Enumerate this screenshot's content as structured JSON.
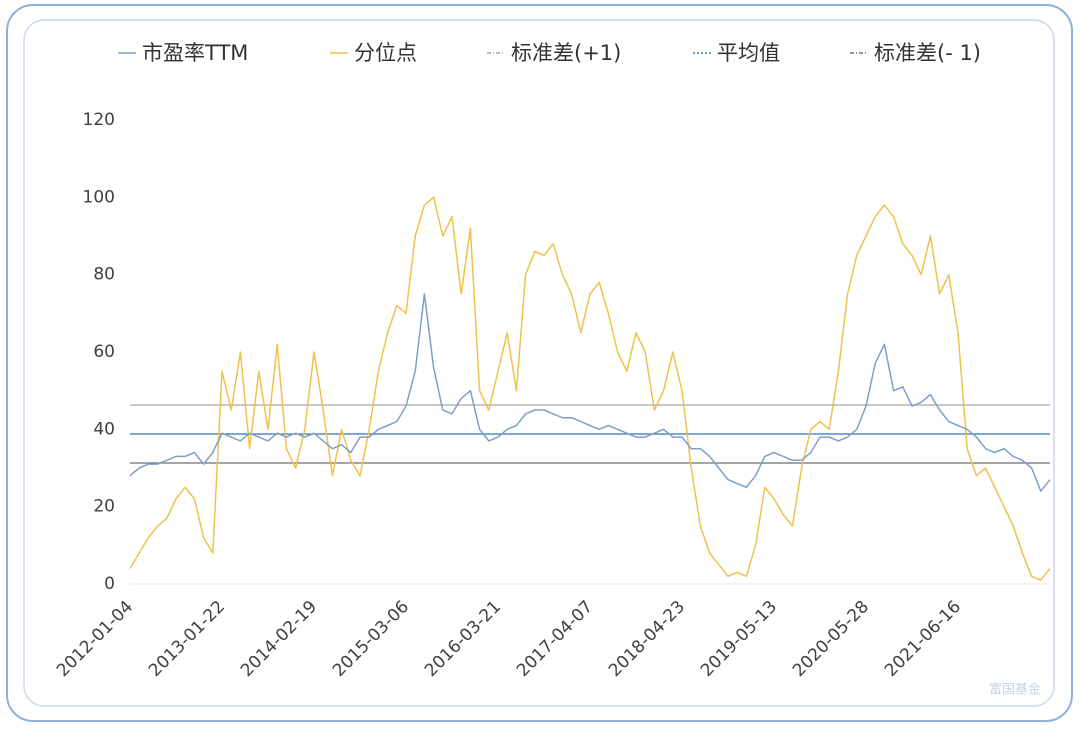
{
  "chart_data": {
    "type": "line",
    "watermark": "富国基金",
    "categories": [
      "2012-01-04",
      null,
      null,
      null,
      null,
      null,
      null,
      null,
      null,
      null,
      "2013-01-22",
      null,
      null,
      null,
      null,
      null,
      null,
      null,
      null,
      null,
      "2014-02-19",
      null,
      null,
      null,
      null,
      null,
      null,
      null,
      null,
      null,
      "2015-03-06",
      null,
      null,
      null,
      null,
      null,
      null,
      null,
      null,
      null,
      "2016-03-21",
      null,
      null,
      null,
      null,
      null,
      null,
      null,
      null,
      null,
      "2017-04-07",
      null,
      null,
      null,
      null,
      null,
      null,
      null,
      null,
      null,
      "2018-04-23",
      null,
      null,
      null,
      null,
      null,
      null,
      null,
      null,
      null,
      "2019-05-13",
      null,
      null,
      null,
      null,
      null,
      null,
      null,
      null,
      null,
      "2020-05-28",
      null,
      null,
      null,
      null,
      null,
      null,
      null,
      null,
      null,
      "2021-06-16",
      null,
      null,
      null,
      null,
      null,
      null,
      null,
      null,
      null,
      null
    ],
    "series": [
      {
        "name": "市盈率TTM",
        "color": "#7f9fc8",
        "values": [
          28,
          30,
          31,
          31,
          32,
          33,
          33,
          34,
          31,
          34,
          39,
          38,
          37,
          39,
          38,
          37,
          39,
          38,
          39,
          38,
          39,
          37,
          35,
          36,
          34,
          38,
          38,
          40,
          41,
          42,
          46,
          55,
          75,
          56,
          45,
          44,
          48,
          50,
          40,
          37,
          38,
          40,
          41,
          44,
          45,
          45,
          44,
          43,
          43,
          42,
          41,
          40,
          41,
          40,
          39,
          38,
          38,
          39,
          40,
          38,
          38,
          35,
          35,
          33,
          30,
          27,
          26,
          25,
          28,
          33,
          34,
          33,
          32,
          32,
          34,
          38,
          38,
          37,
          38,
          40,
          46,
          57,
          62,
          50,
          51,
          46,
          47,
          49,
          45,
          42,
          41,
          40,
          38,
          35,
          34,
          35,
          33,
          32,
          30,
          24,
          27
        ]
      },
      {
        "name": "分位点",
        "color": "#f0c14b",
        "values": [
          4,
          8,
          12,
          15,
          17,
          22,
          25,
          22,
          12,
          8,
          55,
          45,
          60,
          35,
          55,
          40,
          62,
          35,
          30,
          40,
          60,
          45,
          28,
          40,
          32,
          28,
          40,
          55,
          65,
          72,
          70,
          90,
          98,
          100,
          90,
          95,
          75,
          92,
          50,
          45,
          55,
          65,
          50,
          80,
          86,
          85,
          88,
          80,
          75,
          65,
          75,
          78,
          70,
          60,
          55,
          65,
          60,
          45,
          50,
          60,
          50,
          30,
          15,
          8,
          5,
          2,
          3,
          2,
          10,
          25,
          22,
          18,
          15,
          30,
          40,
          42,
          40,
          55,
          75,
          85,
          90,
          95,
          98,
          95,
          88,
          85,
          80,
          90,
          75,
          80,
          65,
          35,
          28,
          30,
          25,
          20,
          15,
          8,
          2,
          1,
          4
        ]
      }
    ],
    "hlines": [
      {
        "name": "标准差(+1)",
        "color": "#a6a6a6",
        "value": 46.3
      },
      {
        "name": "平均值",
        "color": "#2e75b6",
        "value": 38.8
      },
      {
        "name": "标准差(- 1)",
        "color": "#6f6f6f",
        "value": 31.3
      }
    ],
    "ylim": [
      0,
      120
    ],
    "yticks": [
      0,
      20,
      40,
      60,
      80,
      100,
      120
    ]
  }
}
